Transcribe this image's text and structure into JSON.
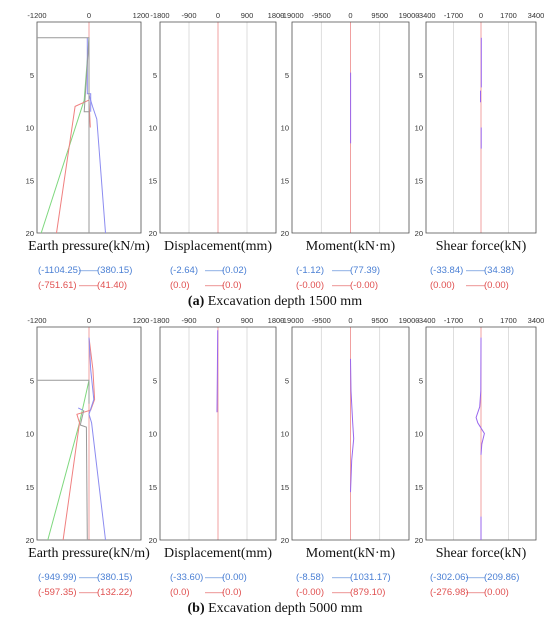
{
  "figure": {
    "captions": [
      {
        "letter": "(a)",
        "text": "Excavation depth 1500 mm"
      },
      {
        "letter": "(b)",
        "text": "Excavation depth 5000 mm"
      }
    ],
    "y_ticks": [
      "5",
      "10",
      "15",
      "20"
    ],
    "range_dash": "——",
    "colors": {
      "blue_range": "#4a7fd4",
      "red_range": "#e05050",
      "grid": "#c8c8c8",
      "zero_line": "#f0a0a0",
      "green_curve": "#7ed87e",
      "red_curve": "#f08080",
      "blue_curve": "#8c8cf0",
      "gray_curve": "#999999",
      "purple_curve": "#9966ee"
    }
  },
  "chart_data": [
    {
      "type": "line",
      "panel": "(a)",
      "xlabel": "Earth pressure(kN/m)",
      "xticks": [
        "-1200",
        "0",
        "1200"
      ],
      "xlim": [
        -1200,
        1200
      ],
      "ylim": [
        0,
        20
      ],
      "range_blue": [
        "(-1104.25)",
        "(380.15)"
      ],
      "range_red": [
        "(-751.61)",
        "(41.40)"
      ],
      "series": [
        {
          "color": "green",
          "points": [
            [
              0,
              1.5
            ],
            [
              -110,
              7.4
            ],
            [
              -1104,
              20
            ]
          ]
        },
        {
          "color": "red",
          "points": [
            [
              0,
              7.4
            ],
            [
              -320,
              8.0
            ],
            [
              -751,
              20
            ]
          ]
        },
        {
          "color": "red",
          "points": [
            [
              0,
              7.4
            ],
            [
              30,
              10
            ]
          ]
        },
        {
          "color": "blue",
          "points": [
            [
              0,
              6.9
            ],
            [
              80,
              8.0
            ],
            [
              180,
              9.2
            ],
            [
              380,
              20
            ]
          ]
        },
        {
          "color": "blue",
          "points": [
            [
              -40,
              1.5
            ],
            [
              -40,
              6.8
            ],
            [
              40,
              6.8
            ],
            [
              40,
              8.5
            ]
          ]
        },
        {
          "color": "gray",
          "points": [
            [
              -1200,
              1.5
            ],
            [
              0,
              1.5
            ],
            [
              -110,
              8.5
            ],
            [
              0,
              8.5
            ]
          ]
        },
        {
          "color": "gray",
          "points": [
            [
              0,
              1.5
            ],
            [
              0,
              20
            ]
          ]
        }
      ]
    },
    {
      "type": "line",
      "panel": "(a)",
      "xlabel": "Displacement(mm)",
      "xticks": [
        "-1800",
        "-900",
        "0",
        "900",
        "1800"
      ],
      "xlim": [
        -1800,
        1800
      ],
      "ylim": [
        0,
        20
      ],
      "range_blue": [
        "(-2.64)",
        "(0.02)"
      ],
      "range_red": [
        "(0.0)",
        "(0.0)"
      ],
      "series": []
    },
    {
      "type": "line",
      "panel": "(a)",
      "xlabel": "Moment(kN·m)",
      "xticks": [
        "-19000",
        "-9500",
        "0",
        "9500",
        "19000"
      ],
      "xlim": [
        -19000,
        19000
      ],
      "ylim": [
        0,
        20
      ],
      "range_blue": [
        "(-1.12)",
        "(77.39)"
      ],
      "range_red": [
        "(-0.00)",
        "(-0.00)"
      ],
      "series": [
        {
          "color": "purple",
          "points": [
            [
              40,
              4.8
            ],
            [
              40,
              11.5
            ]
          ]
        }
      ]
    },
    {
      "type": "line",
      "panel": "(a)",
      "xlabel": "Shear force(kN)",
      "xticks": [
        "-3400",
        "-1700",
        "0",
        "1700",
        "3400"
      ],
      "xlim": [
        -3400,
        3400
      ],
      "ylim": [
        0,
        20
      ],
      "range_blue": [
        "(-33.84)",
        "(34.38)"
      ],
      "range_red": [
        "(0.00)",
        "(0.00)"
      ],
      "series": [
        {
          "color": "purple",
          "points": [
            [
              20,
              1.5
            ],
            [
              20,
              6.2
            ]
          ]
        },
        {
          "color": "purple",
          "points": [
            [
              -30,
              6.5
            ],
            [
              -30,
              7.6
            ]
          ]
        },
        {
          "color": "purple",
          "points": [
            [
              10,
              10.0
            ],
            [
              10,
              12.0
            ]
          ]
        }
      ]
    },
    {
      "type": "line",
      "panel": "(b)",
      "xlabel": "Earth pressure(kN/m)",
      "xticks": [
        "-1200",
        "0",
        "1200"
      ],
      "xlim": [
        -1200,
        1200
      ],
      "ylim": [
        0,
        20
      ],
      "range_blue": [
        "(-949.99)",
        "(380.15)"
      ],
      "range_red": [
        "(-597.35)",
        "(132.22)"
      ],
      "series": [
        {
          "color": "green",
          "points": [
            [
              0,
              5.0
            ],
            [
              -220,
              9.0
            ],
            [
              -950,
              20
            ]
          ]
        },
        {
          "color": "red",
          "points": [
            [
              0,
              1.0
            ],
            [
              90,
              4.0
            ],
            [
              130,
              6.8
            ],
            [
              40,
              7.8
            ],
            [
              -280,
              8.2
            ],
            [
              -220,
              9.0
            ],
            [
              -597,
              20
            ]
          ]
        },
        {
          "color": "blue",
          "points": [
            [
              0,
              1.0
            ],
            [
              40,
              4.0
            ],
            [
              110,
              6.8
            ],
            [
              0,
              8.2
            ],
            [
              60,
              9.0
            ],
            [
              380,
              20
            ]
          ]
        },
        {
          "color": "gray",
          "points": [
            [
              -1200,
              5.0
            ],
            [
              0,
              5.0
            ],
            [
              0,
              7.2
            ]
          ]
        },
        {
          "color": "gray",
          "points": [
            [
              -120,
              7.8
            ],
            [
              -200,
              9.2
            ],
            [
              -60,
              9.4
            ],
            [
              -40,
              20
            ]
          ]
        },
        {
          "color": "blue",
          "points": [
            [
              -250,
              7.6
            ],
            [
              -150,
              7.8
            ]
          ]
        }
      ]
    },
    {
      "type": "line",
      "panel": "(b)",
      "xlabel": "Displacement(mm)",
      "xticks": [
        "-1800",
        "-900",
        "0",
        "900",
        "1800"
      ],
      "xlim": [
        -1800,
        1800
      ],
      "ylim": [
        0,
        20
      ],
      "range_blue": [
        "(-33.60)",
        "(0.00)"
      ],
      "range_red": [
        "(0.0)",
        "(0.0)"
      ],
      "series": [
        {
          "color": "purple",
          "points": [
            [
              -10,
              0.3
            ],
            [
              -20,
              4.0
            ],
            [
              -30,
              8.0
            ]
          ]
        }
      ]
    },
    {
      "type": "line",
      "panel": "(b)",
      "xlabel": "Moment(kN·m)",
      "xticks": [
        "-19000",
        "-9500",
        "0",
        "9500",
        "19000"
      ],
      "xlim": [
        -19000,
        19000
      ],
      "ylim": [
        0,
        20
      ],
      "range_blue": [
        "(-8.58)",
        "(1031.17)"
      ],
      "range_red": [
        "(-0.00)",
        "(879.10)"
      ],
      "series": [
        {
          "color": "purple",
          "points": [
            [
              0,
              3.0
            ],
            [
              150,
              6.0
            ],
            [
              700,
              9.0
            ],
            [
              1031,
              10.5
            ],
            [
              400,
              12.5
            ],
            [
              0,
              15.5
            ]
          ]
        }
      ]
    },
    {
      "type": "line",
      "panel": "(b)",
      "xlabel": "Shear force(kN)",
      "xticks": [
        "-3400",
        "-1700",
        "0",
        "1700",
        "3400"
      ],
      "xlim": [
        -3400,
        3400
      ],
      "ylim": [
        0,
        20
      ],
      "range_blue": [
        "(-302.06)",
        "(209.86)"
      ],
      "range_red": [
        "(-276.98)",
        "(0.00)"
      ],
      "series": [
        {
          "color": "purple",
          "points": [
            [
              0,
              1.0
            ],
            [
              -10,
              6.0
            ],
            [
              -80,
              7.5
            ],
            [
              -300,
              8.5
            ],
            [
              -200,
              9.0
            ],
            [
              210,
              10.0
            ],
            [
              50,
              11.0
            ],
            [
              0,
              12.0
            ]
          ]
        },
        {
          "color": "purple",
          "points": [
            [
              0,
              17.8
            ],
            [
              0,
              20
            ]
          ]
        }
      ]
    }
  ]
}
